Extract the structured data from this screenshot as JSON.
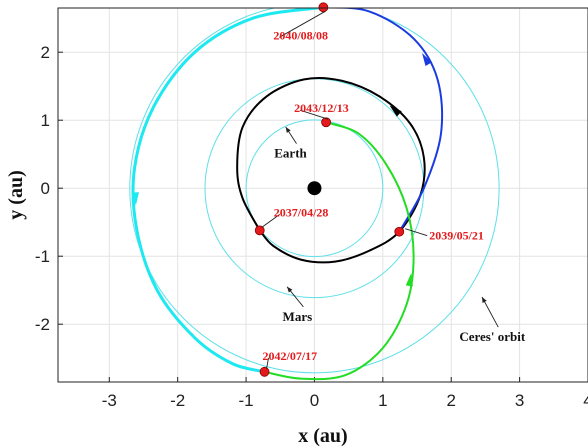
{
  "chart_data": {
    "type": "line",
    "xlabel": "x (au)",
    "ylabel": "y (au)",
    "xlim": [
      -3.75,
      4.0
    ],
    "ylim": [
      -2.85,
      2.65
    ],
    "xticks": [
      -3,
      -2,
      -1,
      0,
      1,
      2,
      3,
      4
    ],
    "yticks": [
      -2,
      -1,
      0,
      1,
      2
    ],
    "grid": true,
    "orbits": [
      {
        "label": "Earth",
        "radius": 1.0,
        "color": "#5fe0e8",
        "label_at": [
          -0.35,
          0.45
        ],
        "arrow_to": [
          -0.42,
          0.9
        ]
      },
      {
        "label": "Mars",
        "radius": 1.6,
        "color": "#5fe0e8",
        "label_at": [
          -0.25,
          -1.95
        ],
        "arrow_to": [
          -0.4,
          -1.45
        ]
      },
      {
        "label": "Ceres' orbit",
        "radius": 2.7,
        "color": "#5fe0e8",
        "label_at": [
          2.6,
          -2.25
        ],
        "arrow_to": [
          2.45,
          -1.6
        ]
      }
    ],
    "sun": {
      "x": 0,
      "y": 0,
      "color": "#000000"
    },
    "events": [
      {
        "date": "2037/04/28",
        "x": -0.8,
        "y": -0.62
      },
      {
        "date": "2039/05/21",
        "x": 1.24,
        "y": -0.64
      },
      {
        "date": "2040/08/08",
        "x": 0.13,
        "y": 2.66
      },
      {
        "date": "2042/07/17",
        "x": -0.73,
        "y": -2.7
      },
      {
        "date": "2043/12/13",
        "x": 0.17,
        "y": 0.97
      }
    ],
    "trajectory_segments": [
      {
        "color": "#000000",
        "points": [
          [
            -0.8,
            -0.62
          ],
          [
            -0.6,
            -0.85
          ],
          [
            -0.2,
            -1.05
          ],
          [
            0.3,
            -1.08
          ],
          [
            0.8,
            -0.92
          ],
          [
            1.24,
            -0.64
          ],
          [
            1.55,
            -0.1
          ],
          [
            1.6,
            0.45
          ],
          [
            1.4,
            0.95
          ],
          [
            0.95,
            1.35
          ],
          [
            0.4,
            1.58
          ],
          [
            -0.15,
            1.6
          ],
          [
            -0.7,
            1.35
          ],
          [
            -1.05,
            0.9
          ],
          [
            -1.13,
            0.3
          ],
          [
            -1.05,
            -0.15
          ],
          [
            -0.8,
            -0.62
          ]
        ]
      },
      {
        "color": "#1a3be0",
        "points": [
          [
            1.24,
            -0.64
          ],
          [
            1.6,
            0.0
          ],
          [
            1.85,
            0.8
          ],
          [
            1.8,
            1.6
          ],
          [
            1.45,
            2.2
          ],
          [
            0.8,
            2.6
          ],
          [
            0.13,
            2.66
          ]
        ]
      },
      {
        "color": "#1ee8f0",
        "points": [
          [
            0.13,
            2.66
          ],
          [
            -0.9,
            2.5
          ],
          [
            -1.75,
            2.0
          ],
          [
            -2.35,
            1.2
          ],
          [
            -2.63,
            0.3
          ],
          [
            -2.6,
            -0.6
          ],
          [
            -2.3,
            -1.5
          ],
          [
            -1.75,
            -2.2
          ],
          [
            -1.2,
            -2.58
          ],
          [
            -0.73,
            -2.7
          ]
        ]
      },
      {
        "color": "#22dd22",
        "points": [
          [
            -0.73,
            -2.7
          ],
          [
            -0.2,
            -2.8
          ],
          [
            0.45,
            -2.75
          ],
          [
            1.0,
            -2.35
          ],
          [
            1.35,
            -1.7
          ],
          [
            1.45,
            -1.0
          ],
          [
            1.35,
            -0.3
          ],
          [
            1.05,
            0.35
          ],
          [
            0.65,
            0.8
          ],
          [
            0.17,
            0.97
          ]
        ]
      }
    ]
  }
}
